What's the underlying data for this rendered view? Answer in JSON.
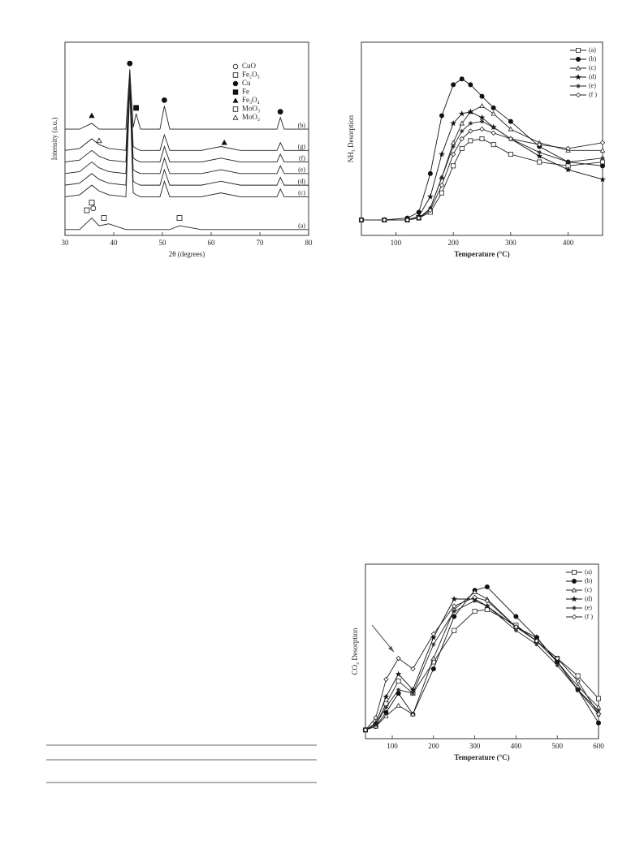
{
  "chart_data": [
    {
      "type": "line",
      "xlabel": "2θ (degrees)",
      "ylabel": "Intensity (a.u.)",
      "xlim": [
        30,
        80
      ],
      "xticks": [
        30,
        40,
        50,
        60,
        70,
        80
      ],
      "ylim": [
        0,
        100
      ],
      "x": [
        30,
        33,
        35.5,
        37,
        39,
        42.5,
        43.3,
        44,
        44.6,
        45.5,
        49.5,
        50.4,
        51.5,
        53.5,
        58,
        62,
        66,
        70,
        73.5,
        74.2,
        75,
        80
      ],
      "series": [
        {
          "name": "(b)",
          "color": "#222",
          "values": [
            55,
            55,
            58,
            55,
            55,
            55,
            86,
            56,
            63,
            55,
            55,
            67,
            55,
            55,
            55,
            55,
            55,
            55,
            55,
            61,
            55,
            55
          ]
        },
        {
          "name": "(g)",
          "color": "#222",
          "values": [
            44,
            45,
            50,
            47,
            45,
            44,
            84,
            46,
            45,
            44,
            44,
            52,
            44,
            44,
            44,
            46,
            44,
            44,
            44,
            48,
            44,
            44
          ]
        },
        {
          "name": "(f)",
          "color": "#222",
          "values": [
            38,
            39,
            44,
            41,
            39,
            38,
            82,
            40,
            39,
            38,
            38,
            46,
            38,
            38,
            38,
            40,
            38,
            38,
            38,
            42,
            38,
            38
          ]
        },
        {
          "name": "(e)",
          "color": "#222",
          "values": [
            32,
            33,
            38,
            35,
            33,
            32,
            80,
            34,
            33,
            32,
            32,
            40,
            32,
            32,
            32,
            34,
            32,
            32,
            32,
            36,
            32,
            32
          ]
        },
        {
          "name": "(d)",
          "color": "#222",
          "values": [
            26,
            27,
            32,
            29,
            27,
            26,
            78,
            28,
            27,
            26,
            26,
            34,
            26,
            26,
            26,
            28,
            26,
            26,
            26,
            30,
            26,
            26
          ]
        },
        {
          "name": "(c)",
          "color": "#222",
          "values": [
            20,
            21,
            26,
            23,
            21,
            20,
            76,
            22,
            21,
            20,
            20,
            28,
            20,
            20,
            20,
            22,
            20,
            20,
            20,
            24,
            20,
            20
          ]
        },
        {
          "name": "(a)",
          "color": "#222",
          "values": [
            3,
            3,
            9,
            5,
            6,
            3,
            3,
            3,
            3,
            3,
            3,
            3,
            3,
            5,
            3,
            3,
            3,
            3,
            3,
            3,
            3,
            3
          ]
        }
      ],
      "legend": [
        {
          "label": "CuO",
          "marker": "circle-open"
        },
        {
          "label": "Fe₂O₃",
          "marker": "square-open"
        },
        {
          "label": "Cu",
          "marker": "circle-filled"
        },
        {
          "label": "Fe",
          "marker": "square-filled"
        },
        {
          "label": "Fe₃O₄",
          "marker": "triangle-filled"
        },
        {
          "label": "MoO₃",
          "marker": "square-open"
        },
        {
          "label": "MoO₂",
          "marker": "triangle-open"
        }
      ],
      "peak_markers": [
        {
          "phase": 2,
          "x": 43.3,
          "y": 89
        },
        {
          "phase": 2,
          "x": 50.4,
          "y": 70
        },
        {
          "phase": 2,
          "x": 74.2,
          "y": 64
        },
        {
          "phase": 3,
          "x": 44.6,
          "y": 66
        },
        {
          "phase": 4,
          "x": 35.5,
          "y": 62
        },
        {
          "phase": 4,
          "x": 62.7,
          "y": 48
        },
        {
          "phase": 6,
          "x": 37,
          "y": 49
        },
        {
          "phase": 0,
          "x": 35.8,
          "y": 14
        },
        {
          "phase": 1,
          "x": 35.5,
          "y": 17
        },
        {
          "phase": 1,
          "x": 34.5,
          "y": 13
        },
        {
          "phase": 1,
          "x": 38,
          "y": 9
        },
        {
          "phase": 1,
          "x": 53.5,
          "y": 9
        }
      ]
    },
    {
      "type": "line",
      "xlabel": "Temperature (°C)",
      "ylabel": "NH₃ Desorption",
      "xlim": [
        40,
        460
      ],
      "xticks": [
        100,
        200,
        300,
        400
      ],
      "ylim": [
        0,
        100
      ],
      "x": [
        40,
        80,
        120,
        140,
        160,
        180,
        200,
        215,
        230,
        250,
        270,
        300,
        350,
        400,
        460
      ],
      "series": [
        {
          "name": "(a)",
          "color": "#222",
          "marker": "square-open",
          "values": [
            8,
            8,
            8,
            9,
            12,
            22,
            36,
            45,
            49,
            50,
            47,
            42,
            38,
            36,
            38
          ]
        },
        {
          "name": "(b)",
          "color": "#111",
          "marker": "circle-filled",
          "values": [
            8,
            8,
            9,
            12,
            32,
            62,
            78,
            81,
            78,
            72,
            66,
            59,
            46,
            38,
            36
          ]
        },
        {
          "name": "(c)",
          "color": "#222",
          "marker": "triangle-open",
          "values": [
            8,
            8,
            8,
            9,
            14,
            30,
            48,
            58,
            64,
            67,
            63,
            55,
            48,
            44,
            44
          ]
        },
        {
          "name": "(d)",
          "color": "#111",
          "marker": "star-filled",
          "values": [
            8,
            8,
            8,
            10,
            20,
            42,
            58,
            63,
            64,
            61,
            56,
            50,
            41,
            34,
            29
          ]
        },
        {
          "name": "(e)",
          "color": "#222",
          "marker": "asterisk",
          "values": [
            8,
            8,
            8,
            9,
            14,
            30,
            46,
            54,
            58,
            59,
            56,
            50,
            43,
            38,
            40
          ]
        },
        {
          "name": "(f )",
          "color": "#222",
          "marker": "diamond-open",
          "values": [
            8,
            8,
            8,
            9,
            13,
            26,
            42,
            50,
            54,
            55,
            53,
            50,
            47,
            45,
            48
          ]
        }
      ]
    },
    {
      "type": "line",
      "xlabel": "Temperature (°C)",
      "ylabel": "CO₂ Desorption",
      "xlim": [
        35,
        600
      ],
      "xticks": [
        100,
        200,
        300,
        400,
        500,
        600
      ],
      "ylim": [
        0,
        100
      ],
      "x": [
        35,
        60,
        85,
        115,
        150,
        200,
        250,
        300,
        330,
        400,
        450,
        500,
        550,
        600
      ],
      "series": [
        {
          "name": "(a)",
          "color": "#222",
          "marker": "square-open",
          "values": [
            5,
            8,
            20,
            33,
            26,
            44,
            62,
            73,
            74,
            65,
            56,
            46,
            36,
            23
          ]
        },
        {
          "name": "(b)",
          "color": "#111",
          "marker": "circle-filled",
          "values": [
            5,
            7,
            15,
            26,
            14,
            40,
            70,
            85,
            87,
            70,
            58,
            44,
            28,
            9
          ]
        },
        {
          "name": "(c)",
          "color": "#222",
          "marker": "triangle-open",
          "values": [
            5,
            7,
            13,
            19,
            14,
            46,
            74,
            84,
            80,
            64,
            56,
            44,
            30,
            18
          ]
        },
        {
          "name": "(d)",
          "color": "#111",
          "marker": "star-filled",
          "values": [
            5,
            9,
            24,
            37,
            28,
            58,
            80,
            80,
            76,
            64,
            58,
            44,
            28,
            14
          ]
        },
        {
          "name": "(e)",
          "color": "#222",
          "marker": "asterisk",
          "values": [
            5,
            8,
            18,
            28,
            26,
            54,
            73,
            79,
            76,
            62,
            54,
            42,
            28,
            16
          ]
        },
        {
          "name": "(f )",
          "color": "#222",
          "marker": "diamond-open",
          "values": [
            5,
            12,
            34,
            46,
            40,
            60,
            76,
            81,
            79,
            64,
            56,
            46,
            33,
            14
          ]
        }
      ]
    }
  ]
}
